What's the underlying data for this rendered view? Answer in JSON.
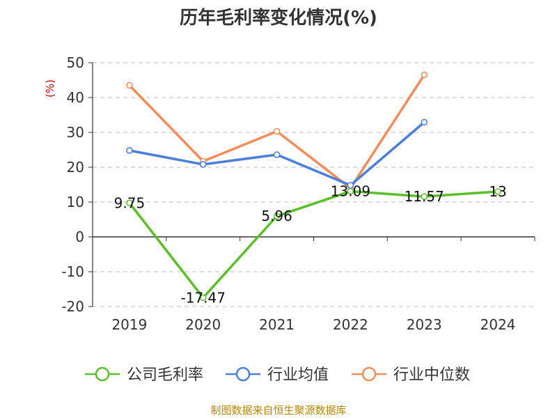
{
  "chart_data": {
    "type": "line",
    "title": "历年毛利率变化情况(%)",
    "ylabel": "(%)",
    "xlabel": "",
    "categories": [
      "2019",
      "2020",
      "2021",
      "2022",
      "2023",
      "2024"
    ],
    "ylim": [
      -20,
      50
    ],
    "yticks": [
      50,
      40,
      30,
      20,
      10,
      0,
      -10,
      -20
    ],
    "grid": true,
    "legend_position": "bottom",
    "series": [
      {
        "name": "公司毛利率",
        "color": "#5cbf2a",
        "values": [
          9.75,
          -17.47,
          5.96,
          13.09,
          11.57,
          13
        ],
        "labels": [
          "9.75",
          "-17.47",
          "5.96",
          "13.09",
          "11.57",
          "13"
        ]
      },
      {
        "name": "行业均值",
        "color": "#4a7fdb",
        "values": [
          24.8,
          20.8,
          23.6,
          14.8,
          32.9,
          null
        ]
      },
      {
        "name": "行业中位数",
        "color": "#f58c5a",
        "values": [
          43.5,
          21.7,
          30.3,
          14.0,
          46.5,
          null
        ]
      }
    ]
  },
  "footer": {
    "source": "制图数据来自恒生聚源数据库"
  }
}
